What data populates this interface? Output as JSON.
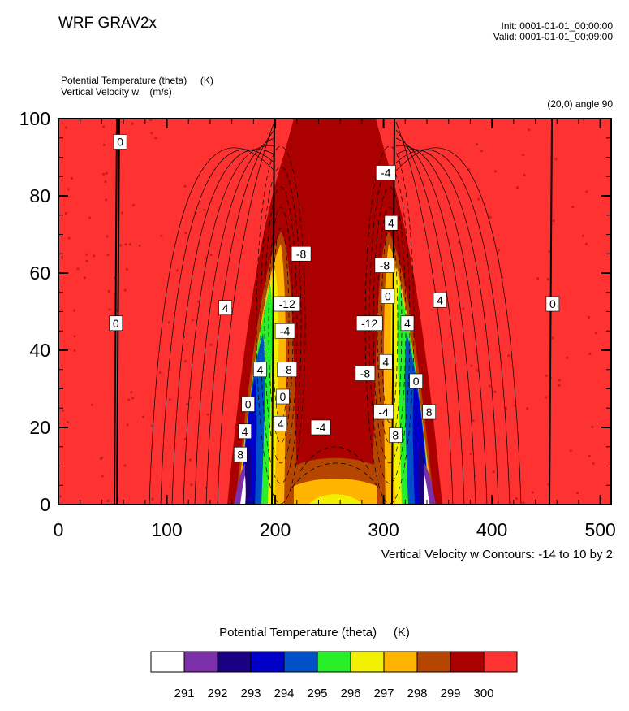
{
  "header": {
    "title": "WRF GRAV2x",
    "init": "Init: 0001-01-01_00:00:00",
    "valid": "Valid: 0001-01-01_00:09:00",
    "var1": "Potential Temperature (theta)     (K)",
    "var2": "Vertical Velocity w    (m/s)",
    "cross_section": "(20,0) angle 90"
  },
  "chart_data": {
    "type": "heatmap",
    "x_ticks": [
      "0",
      "100",
      "200",
      "300",
      "400",
      "500"
    ],
    "y_ticks": [
      "0",
      "20",
      "40",
      "60",
      "80",
      "100"
    ],
    "xlim": [
      0,
      510
    ],
    "ylim": [
      0,
      100
    ],
    "fill_variable": "Potential Temperature (theta)     (K)",
    "contour_variable": "Vertical Velocity w",
    "contour_info": "Vertical Velocity w Contours: -14 to 10 by 2",
    "contour_labels": [
      {
        "text": "0",
        "x": 57,
        "y": 94
      },
      {
        "text": "0",
        "x": 53,
        "y": 47
      },
      {
        "text": "-4",
        "x": 302,
        "y": 86
      },
      {
        "text": "4",
        "x": 307,
        "y": 73
      },
      {
        "text": "-8",
        "x": 224,
        "y": 65
      },
      {
        "text": "-8",
        "x": 301,
        "y": 62
      },
      {
        "text": "0",
        "x": 304,
        "y": 54
      },
      {
        "text": "4",
        "x": 352,
        "y": 53
      },
      {
        "text": "0",
        "x": 456,
        "y": 52
      },
      {
        "text": "4",
        "x": 154,
        "y": 51
      },
      {
        "text": "-12",
        "x": 211,
        "y": 52
      },
      {
        "text": "-12",
        "x": 287,
        "y": 47
      },
      {
        "text": "4",
        "x": 322,
        "y": 47
      },
      {
        "text": "-4",
        "x": 209,
        "y": 45
      },
      {
        "text": "4",
        "x": 302,
        "y": 37
      },
      {
        "text": "4",
        "x": 186,
        "y": 35
      },
      {
        "text": "-8",
        "x": 211,
        "y": 35
      },
      {
        "text": "-8",
        "x": 283,
        "y": 34
      },
      {
        "text": "0",
        "x": 330,
        "y": 32
      },
      {
        "text": "0",
        "x": 207,
        "y": 28
      },
      {
        "text": "0",
        "x": 175,
        "y": 26
      },
      {
        "text": "-4",
        "x": 300,
        "y": 24
      },
      {
        "text": "8",
        "x": 342,
        "y": 24
      },
      {
        "text": "4",
        "x": 205,
        "y": 21
      },
      {
        "text": "-4",
        "x": 242,
        "y": 20
      },
      {
        "text": "4",
        "x": 172,
        "y": 19
      },
      {
        "text": "8",
        "x": 311,
        "y": 18
      },
      {
        "text": "8",
        "x": 168,
        "y": 13
      }
    ]
  },
  "colorbar": {
    "title": "Potential Temperature (theta)     (K)",
    "colors": [
      "#ffffff",
      "#7b2fa8",
      "#1a0082",
      "#0000c8",
      "#0050c8",
      "#28f028",
      "#f0f000",
      "#ffb400",
      "#b44600",
      "#aa0000",
      "#ff3232"
    ],
    "labels": [
      "291",
      "292",
      "293",
      "294",
      "295",
      "296",
      "297",
      "298",
      "299",
      "300"
    ]
  }
}
